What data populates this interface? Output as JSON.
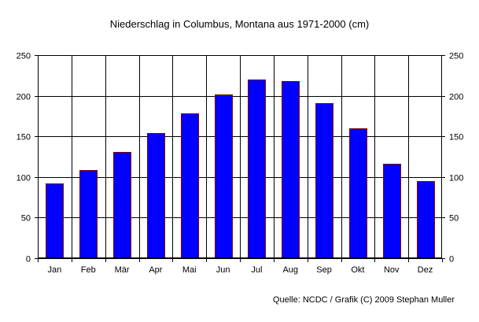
{
  "chart_data": {
    "type": "bar",
    "title": "Niederschlag in Columbus, Montana aus 1971-2000 (cm)",
    "source": "Quelle: NCDC / Grafik (C) 2009 Stephan Muller",
    "categories": [
      "Jan",
      "Feb",
      "Mär",
      "Apr",
      "Mai",
      "Jun",
      "Jul",
      "Aug",
      "Sep",
      "Okt",
      "Nov",
      "Dez"
    ],
    "values": [
      92,
      109,
      131,
      154,
      178,
      202,
      220,
      218,
      191,
      160,
      116,
      95
    ],
    "ylim": [
      0,
      250
    ],
    "yticks": [
      0,
      50,
      100,
      150,
      200,
      250
    ],
    "xlabel": "",
    "ylabel": "",
    "grid": true,
    "bar_color": "#0000ff",
    "bar_border_color": "#800000"
  }
}
